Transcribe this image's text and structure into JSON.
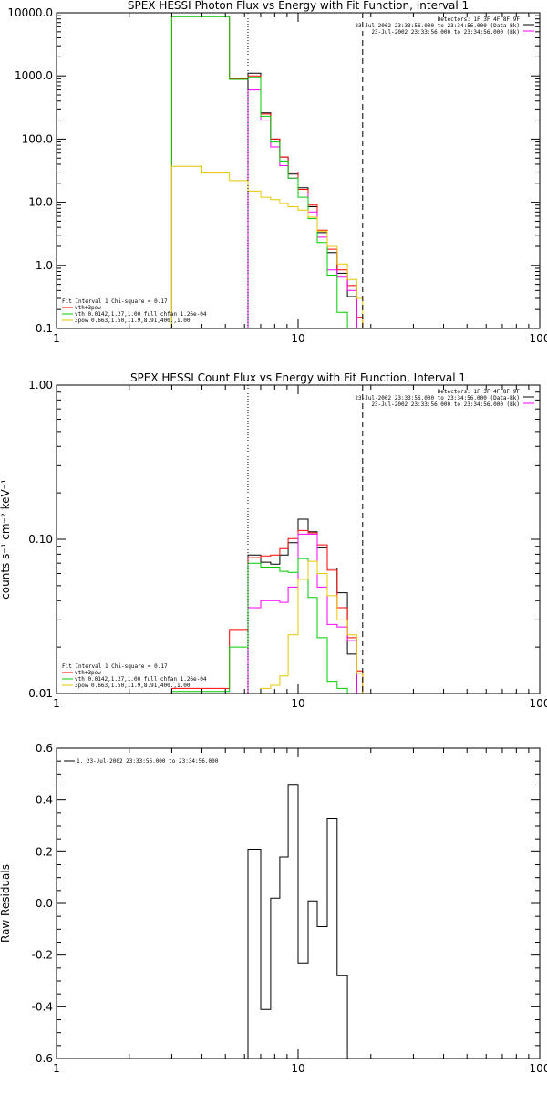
{
  "chart_data": [
    {
      "type": "line",
      "title": "SPEX HESSI Photon Flux vs Energy with Fit Function, Interval 1",
      "ylabel": "",
      "xscale": "log",
      "yscale": "log",
      "xlim": [
        1,
        100
      ],
      "ylim": [
        0.1,
        10000
      ],
      "x_tick_labels": [
        "1",
        "10",
        "100"
      ],
      "y_tick_labels": [
        "0.1",
        "1.0",
        "10.0",
        "100.0",
        "1000.0",
        "10000.0"
      ],
      "info": [
        "Detectors: 1F 3F 4F 8F 9F",
        "23-Jul-2002 23:33:56.000 to 23:34:56.000 (Data-Bk)",
        "23-Jul-2002 23:33:56.000 to 23:34:56.000 (Bk)"
      ],
      "legend": [
        "Fit Interval 1    Chi-square = 0.17",
        "vth+3pow",
        "vth 0.0142,1.27,1.00  full chfan 1.26e-04",
        "3pow 0.663,1.50,11.9,8.91,400.,1.00"
      ],
      "vlines": [
        {
          "x": 6.2,
          "style": "dotted"
        },
        {
          "x": 18.5,
          "style": "dashed"
        }
      ],
      "edges": [
        3.0,
        4.0,
        5.2,
        6.2,
        7.0,
        7.7,
        8.4,
        9.1,
        10.0,
        11.0,
        12.0,
        13.2,
        14.5,
        16.0,
        17.5,
        18.5,
        20.0
      ],
      "series": [
        {
          "color": "#000000",
          "values": [
            null,
            null,
            null,
            1100,
            260,
            100,
            52,
            28,
            17,
            8.5,
            3.3,
            1.6,
            0.75,
            0.32,
            null,
            null
          ]
        },
        {
          "color": "#ff0000",
          "values": [
            8800,
            8800,
            900,
            1000,
            250,
            100,
            52,
            30,
            16,
            9.0,
            3.6,
            1.8,
            0.85,
            0.48,
            0.15,
            null
          ]
        },
        {
          "color": "#ff00ff",
          "values": [
            null,
            null,
            null,
            600,
            200,
            75,
            38,
            24,
            14,
            7.0,
            2.8,
            0.85,
            0.65,
            0.4,
            null,
            null
          ]
        },
        {
          "color": "#00cc00",
          "values": [
            8700,
            8700,
            880,
            950,
            230,
            90,
            45,
            24,
            12,
            5.5,
            2.3,
            0.7,
            0.18,
            null,
            null,
            null
          ]
        },
        {
          "color": "#e6c800",
          "values": [
            37,
            29,
            22,
            15,
            12,
            11,
            9.5,
            8.5,
            7.5,
            5.8,
            3.5,
            2.0,
            1.05,
            0.6,
            0.3,
            0.1
          ]
        }
      ]
    },
    {
      "type": "line",
      "title": "SPEX HESSI Count Flux vs Energy with Fit Function, Interval 1",
      "ylabel": "counts s⁻¹ cm⁻² keV⁻¹",
      "xscale": "log",
      "yscale": "log",
      "xlim": [
        1,
        100
      ],
      "ylim": [
        0.01,
        1.0
      ],
      "x_tick_labels": [
        "1",
        "10",
        "100"
      ],
      "y_tick_labels": [
        "0.01",
        "0.10",
        "1.00"
      ],
      "info": [
        "Detectors: 1F 3F 4F 8F 9F",
        "23-Jul-2002 23:33:56.000 to 23:34:56.000 (Data-Bk)",
        "23-Jul-2002 23:33:56.000 to 23:34:56.000 (Bk)"
      ],
      "legend": [
        "Fit Interval 1    Chi-square = 0.17",
        "vth+3pow",
        "vth 0.0142,1.27,1.00  full chfan 1.26e-04",
        "3pow 0.663,1.50,11.9,8.91,400.,1.00"
      ],
      "vlines": [
        {
          "x": 6.2,
          "style": "dotted"
        },
        {
          "x": 18.5,
          "style": "dashed"
        }
      ],
      "edges": [
        3.0,
        4.0,
        5.2,
        6.2,
        7.0,
        7.7,
        8.4,
        9.1,
        10.0,
        11.0,
        12.0,
        13.2,
        14.5,
        16.0,
        17.5,
        18.5,
        20.0
      ],
      "series": [
        {
          "color": "#000000",
          "values": [
            null,
            null,
            null,
            0.079,
            0.071,
            0.069,
            0.079,
            0.095,
            0.135,
            0.112,
            0.088,
            0.065,
            0.045,
            0.018,
            null,
            null
          ]
        },
        {
          "color": "#ff0000",
          "values": [
            0.0108,
            0.0108,
            0.026,
            0.076,
            0.078,
            0.079,
            0.087,
            0.101,
            0.114,
            0.11,
            0.092,
            0.063,
            0.036,
            0.023,
            0.014,
            null
          ]
        },
        {
          "color": "#ff00ff",
          "values": [
            null,
            null,
            null,
            0.036,
            0.04,
            0.04,
            0.039,
            0.049,
            0.108,
            0.108,
            0.049,
            0.028,
            0.027,
            0.022,
            null,
            null
          ]
        },
        {
          "color": "#00cc00",
          "values": [
            0.0103,
            0.0103,
            0.02,
            0.07,
            0.066,
            0.066,
            0.062,
            0.061,
            0.075,
            0.042,
            0.023,
            0.012,
            0.0108,
            null,
            null,
            null
          ]
        },
        {
          "color": "#e6c800",
          "values": [
            null,
            null,
            null,
            null,
            0.0108,
            0.0113,
            0.013,
            0.024,
            0.055,
            0.072,
            0.06,
            0.043,
            0.03,
            0.024,
            0.0135,
            null
          ]
        }
      ]
    },
    {
      "type": "line",
      "title": "",
      "ylabel": "Raw Residuals",
      "xscale": "log",
      "yscale": "linear",
      "xlim": [
        1,
        100
      ],
      "ylim": [
        -0.6,
        0.6
      ],
      "x_tick_labels": [
        "1",
        "10",
        "100"
      ],
      "y_tick_labels": [
        "-0.6",
        "-0.4",
        "-0.2",
        "0.0",
        "0.2",
        "0.4",
        "0.6"
      ],
      "legend": [
        "1. 23-Jul-2002 23:33:56.000 to 23:34:56.000"
      ],
      "edges": [
        6.2,
        7.0,
        7.7,
        8.4,
        9.1,
        10.0,
        11.0,
        12.0,
        13.2,
        14.5,
        16.0,
        17.5,
        18.5
      ],
      "series": [
        {
          "color": "#000000",
          "values": [
            0.21,
            -0.41,
            0.02,
            0.18,
            0.46,
            -0.23,
            0.01,
            -0.09,
            0.33,
            -0.28,
            null,
            null
          ]
        }
      ]
    }
  ]
}
